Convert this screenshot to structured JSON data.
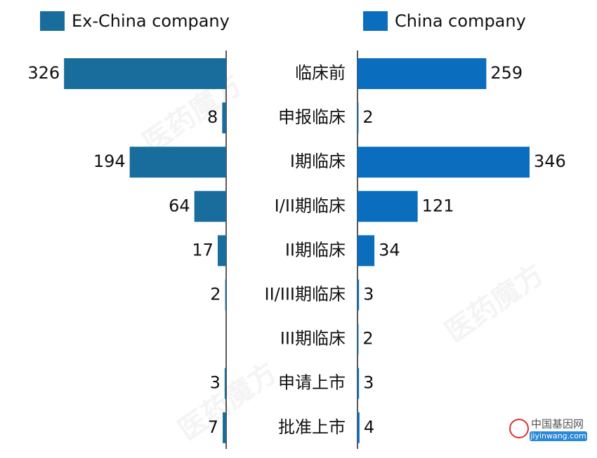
{
  "chart_data": {
    "type": "butterfly_bar",
    "categories": [
      "临床前",
      "申报临床",
      "I期临床",
      "I/II期临床",
      "II期临床",
      "II/III期临床",
      "III期临床",
      "申请上市",
      "批准上市"
    ],
    "series": [
      {
        "name": "Ex-China company",
        "color": "#196d9c",
        "values": [
          326,
          8,
          194,
          64,
          17,
          2,
          null,
          3,
          7
        ]
      },
      {
        "name": "China company",
        "color": "#0b6dbd",
        "values": [
          259,
          2,
          346,
          121,
          34,
          3,
          2,
          3,
          4
        ]
      }
    ]
  },
  "watermark": {
    "brand": "医药魔方",
    "logo": "中国基因网",
    "url": "jiyinwang.com"
  }
}
